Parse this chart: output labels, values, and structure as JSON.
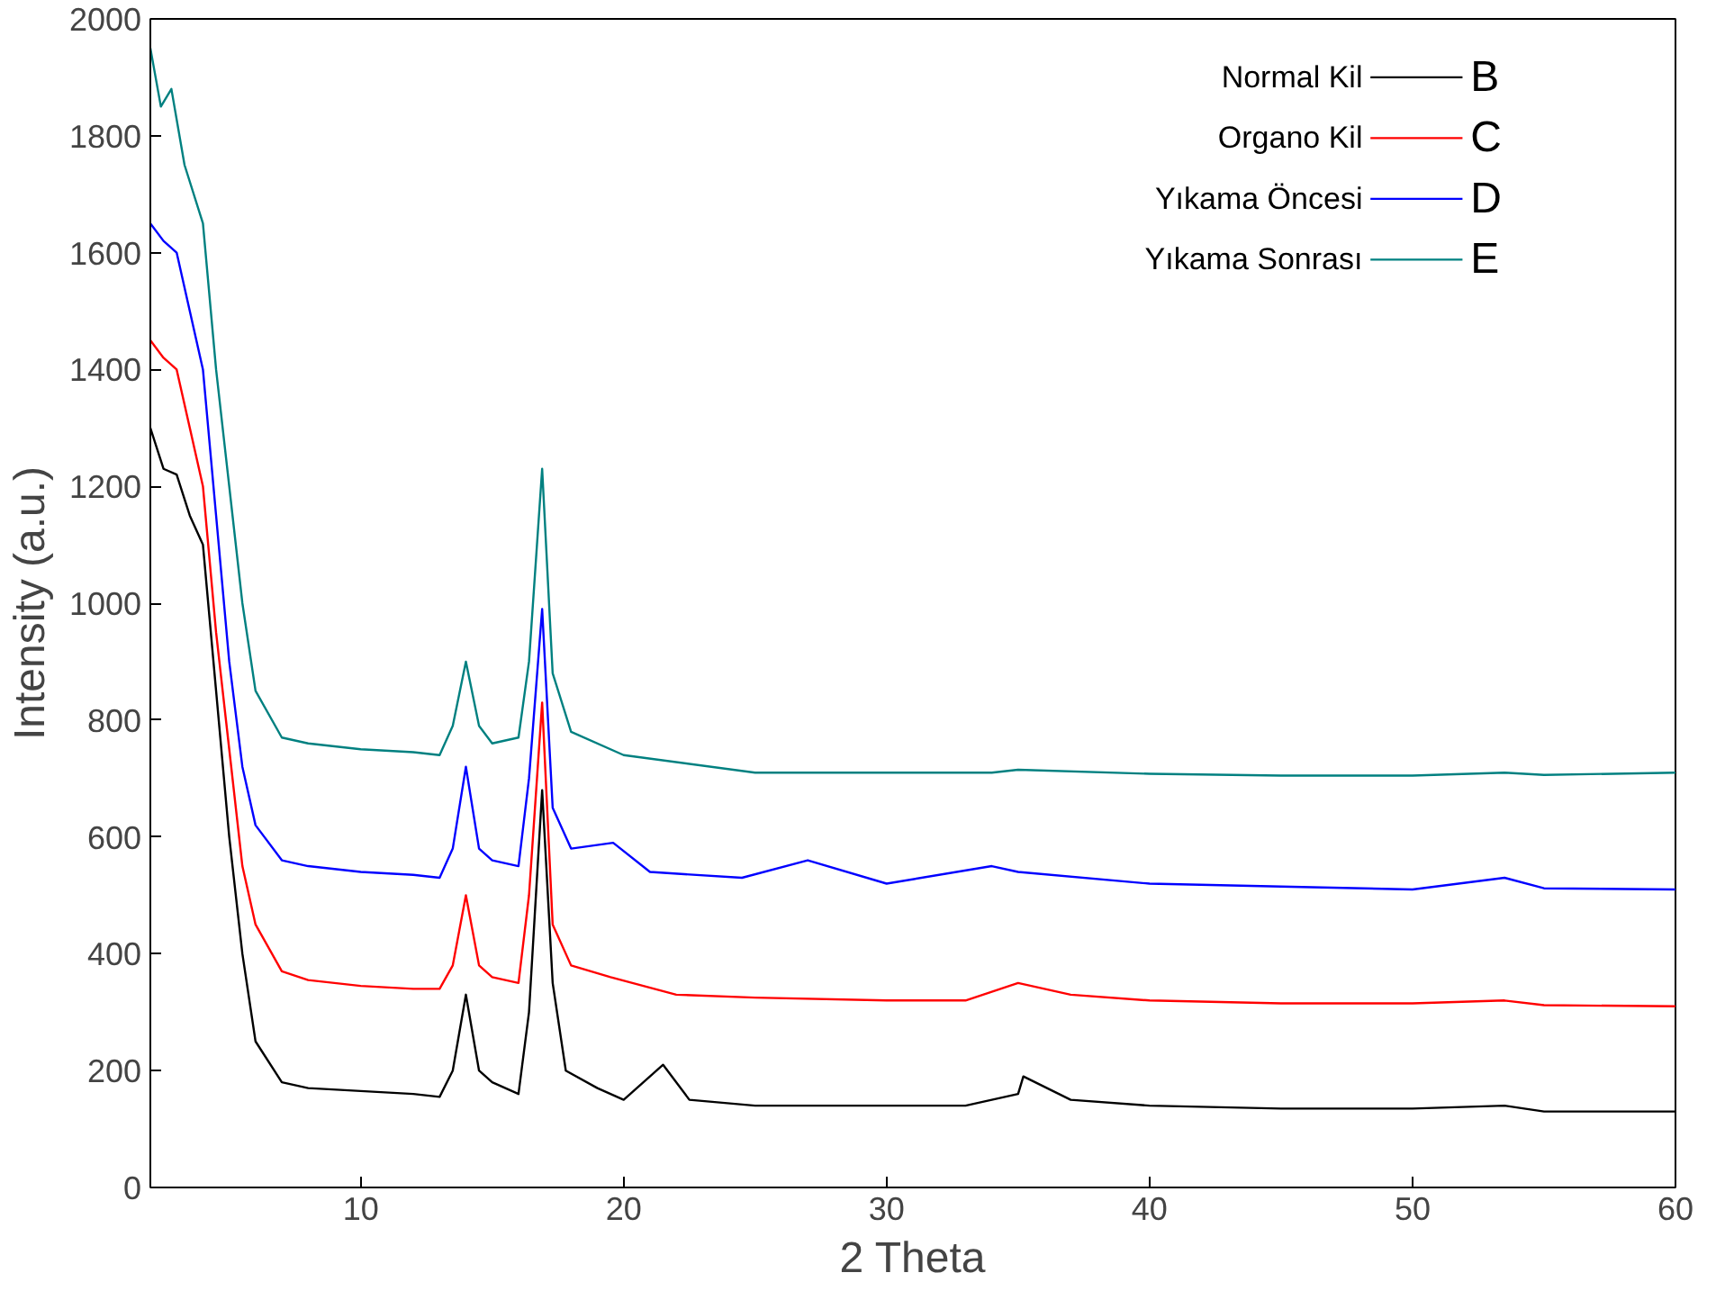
{
  "chart_data": {
    "type": "line",
    "xlabel": "2 Theta",
    "ylabel": "Intensity (a.u.)",
    "xlim": [
      2,
      60
    ],
    "xticks": [
      10,
      20,
      30,
      40,
      50,
      60
    ],
    "ylim": [
      0,
      2000
    ],
    "yticks": [
      0,
      200,
      400,
      600,
      800,
      1000,
      1200,
      1400,
      1600,
      1800,
      2000
    ],
    "grid": false,
    "legend": "top right",
    "line_style": "solid",
    "marker": "none",
    "annotations": [
      "B",
      "C",
      "D",
      "E"
    ],
    "series": [
      {
        "name": "Normal Kil",
        "color": "#000000",
        "x": [
          2,
          2.5,
          3,
          3.5,
          4,
          4.5,
          5,
          5.5,
          6,
          7,
          8,
          10,
          12,
          13,
          13.5,
          14,
          14.5,
          15,
          16,
          16.4,
          16.9,
          17.3,
          17.8,
          19,
          20,
          21.5,
          22.5,
          25,
          30,
          33,
          35,
          35.2,
          37,
          40,
          45,
          50,
          53.5,
          55,
          60
        ],
        "values": [
          1300,
          1230,
          1220,
          1150,
          1100,
          850,
          600,
          400,
          250,
          180,
          170,
          165,
          160,
          155,
          200,
          330,
          200,
          180,
          160,
          300,
          680,
          350,
          200,
          170,
          150,
          210,
          150,
          140,
          140,
          140,
          160,
          190,
          150,
          140,
          135,
          135,
          140,
          130,
          130
        ]
      },
      {
        "name": "Organo Kil",
        "color": "#ff0000",
        "x": [
          2,
          2.5,
          3,
          3.5,
          4,
          4.5,
          5,
          5.5,
          6,
          7,
          8,
          10,
          12,
          13,
          13.5,
          14,
          14.5,
          15,
          16,
          16.4,
          16.9,
          17.3,
          18,
          19.5,
          22,
          25,
          30,
          33,
          35,
          37,
          40,
          45,
          50,
          53.5,
          55,
          60
        ],
        "values": [
          1450,
          1420,
          1400,
          1300,
          1200,
          950,
          750,
          550,
          450,
          370,
          355,
          345,
          340,
          340,
          380,
          500,
          380,
          360,
          350,
          500,
          830,
          450,
          380,
          360,
          330,
          325,
          320,
          320,
          350,
          330,
          320,
          315,
          315,
          320,
          312,
          310
        ]
      },
      {
        "name": "Yıkama Öncesi",
        "color": "#0000ff",
        "x": [
          2,
          2.5,
          3,
          3.5,
          4,
          4.5,
          5,
          5.5,
          6,
          7,
          8,
          10,
          12,
          13,
          13.5,
          14,
          14.5,
          15,
          16,
          16.4,
          16.9,
          17.3,
          18,
          19.6,
          21,
          24.5,
          27,
          30,
          34,
          35,
          40,
          45,
          50,
          53.5,
          55,
          60
        ],
        "values": [
          1650,
          1620,
          1600,
          1500,
          1400,
          1150,
          900,
          720,
          620,
          560,
          550,
          540,
          535,
          530,
          580,
          720,
          580,
          560,
          550,
          700,
          990,
          650,
          580,
          590,
          540,
          530,
          560,
          520,
          550,
          540,
          520,
          515,
          510,
          530,
          512,
          510
        ]
      },
      {
        "name": "Yıkama Sonrası",
        "color": "#008080",
        "x": [
          2,
          2.4,
          2.8,
          3.3,
          4,
          4.5,
          5,
          5.5,
          6,
          7,
          8,
          10,
          12,
          13,
          13.5,
          14,
          14.5,
          15,
          16,
          16.4,
          16.9,
          17.3,
          18,
          20,
          25,
          30,
          34,
          35,
          40,
          45,
          50,
          53.5,
          55,
          60
        ],
        "values": [
          1950,
          1850,
          1880,
          1750,
          1650,
          1400,
          1200,
          1000,
          850,
          770,
          760,
          750,
          745,
          740,
          790,
          900,
          790,
          760,
          770,
          900,
          1230,
          880,
          780,
          740,
          710,
          710,
          710,
          715,
          708,
          705,
          705,
          710,
          706,
          710
        ]
      }
    ]
  }
}
